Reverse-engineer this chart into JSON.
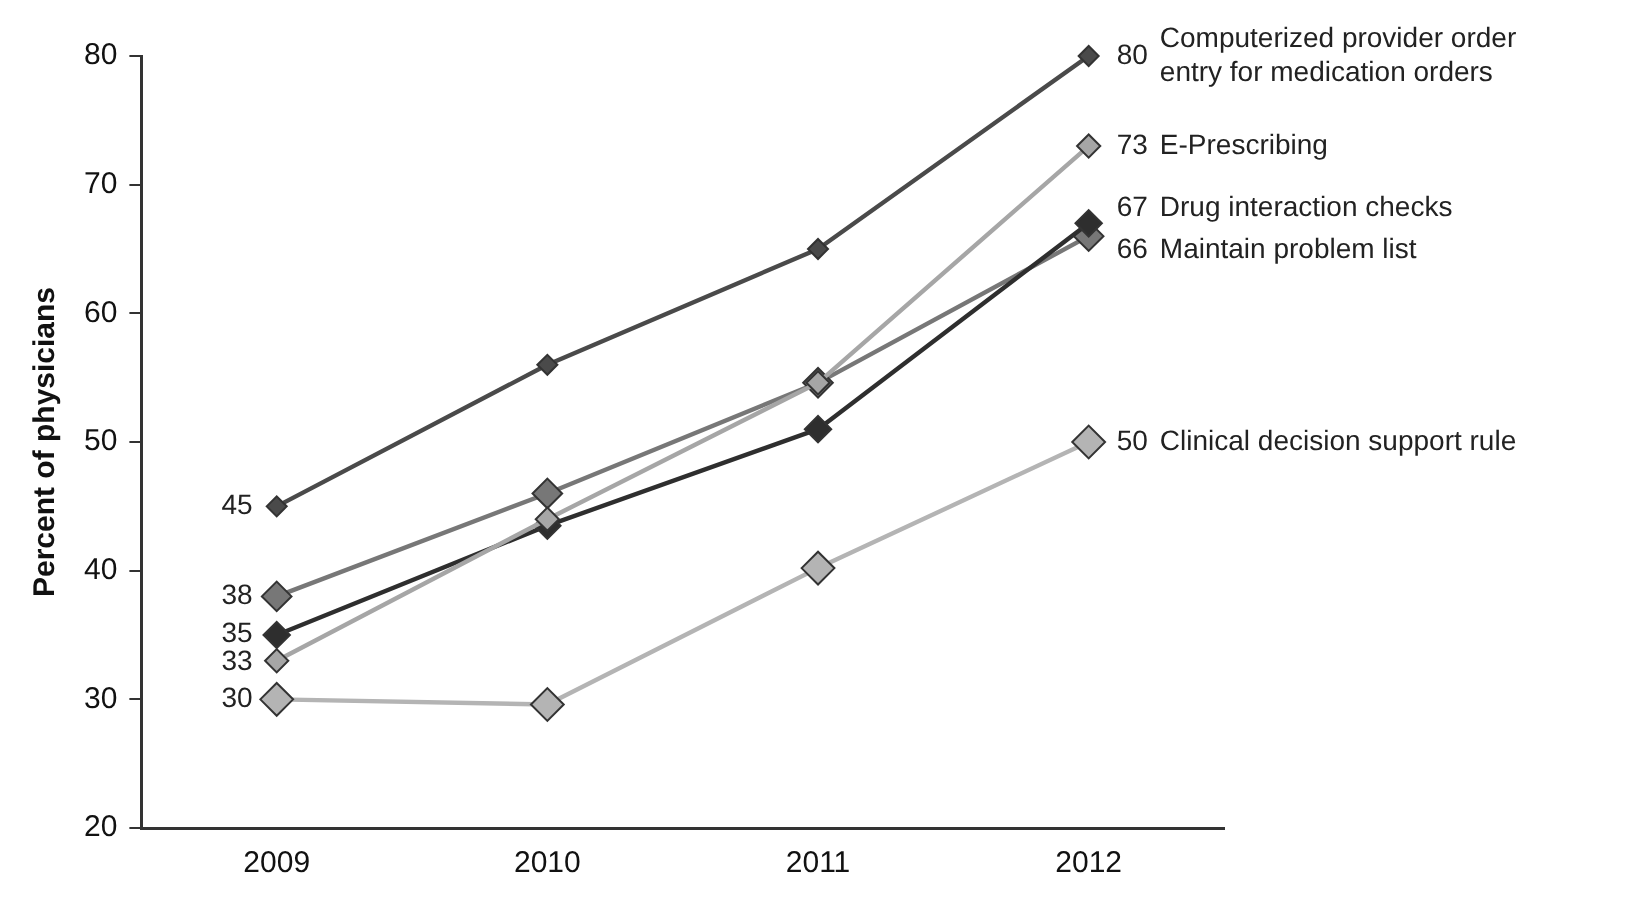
{
  "chart_data": {
    "type": "line",
    "ylabel": "Percent of physicians",
    "categories": [
      "2009",
      "2010",
      "2011",
      "2012"
    ],
    "ylim": [
      20,
      80
    ],
    "yticks": [
      20,
      30,
      40,
      50,
      60,
      70,
      80
    ],
    "grid": false,
    "legend": false,
    "marker": "diamond",
    "line_style": "solid",
    "series": [
      {
        "name": "Computerized provider order entry for medication orders",
        "color": "#4a4a4a",
        "values": [
          45,
          56,
          65,
          80
        ],
        "value_labels": [
          "45",
          null,
          null,
          "80"
        ]
      },
      {
        "name": "E-Prescribing",
        "color": "#a6a6a6",
        "values": [
          33,
          44,
          54.6,
          73
        ],
        "value_labels": [
          "33",
          null,
          null,
          "73"
        ]
      },
      {
        "name": "Drug interaction checks",
        "color": "#2e2e2e",
        "values": [
          35,
          43.5,
          51,
          67
        ],
        "value_labels": [
          "35",
          null,
          null,
          "67"
        ]
      },
      {
        "name": "Maintain problem list",
        "color": "#777777",
        "values": [
          38,
          46,
          54.6,
          66
        ],
        "value_labels": [
          "38",
          null,
          null,
          "66"
        ]
      },
      {
        "name": "Clinical decision support rule",
        "color": "#b4b4b4",
        "values": [
          30,
          29.6,
          40.2,
          50
        ],
        "value_labels": [
          "30",
          null,
          null,
          "50"
        ]
      }
    ]
  }
}
